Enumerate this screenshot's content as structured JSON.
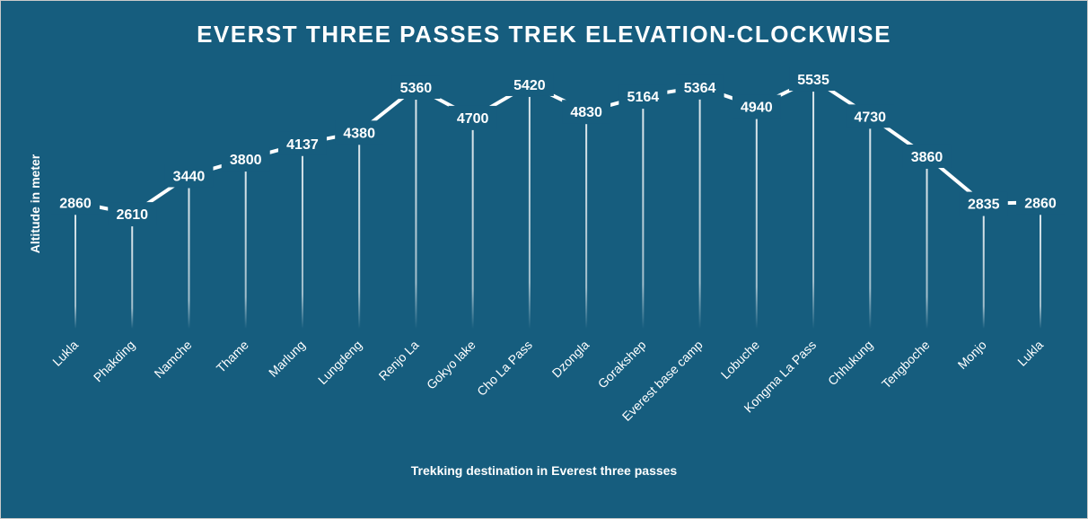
{
  "chart_data": {
    "type": "line",
    "title": "EVERST THREE PASSES TREK ELEVATION-CLOCKWISE",
    "xlabel": "Trekking destination in Everest three passes",
    "ylabel": "Altitude in meter",
    "categories": [
      "Lukla",
      "Phakding",
      "Namche",
      "Thame",
      "Marlung",
      "Lungdeng",
      "Renjo La",
      "Gokyo lake",
      "Cho La Pass",
      "Dzongla",
      "Gorakshep",
      "Everest base camp",
      "Lobuche",
      "Kongma La Pass",
      "Chhukung",
      "Tengboche",
      "Monjo",
      "Lukla"
    ],
    "values": [
      2860,
      2610,
      3440,
      3800,
      4137,
      4380,
      5360,
      4700,
      5420,
      4830,
      5164,
      5364,
      4940,
      5535,
      4730,
      3860,
      2835,
      2860
    ],
    "data_labels": true,
    "drop_lines": true,
    "grid": false,
    "legend": "none",
    "colors": {
      "background": "#165d7e",
      "line": "#ffffff",
      "text": "#ffffff"
    }
  }
}
